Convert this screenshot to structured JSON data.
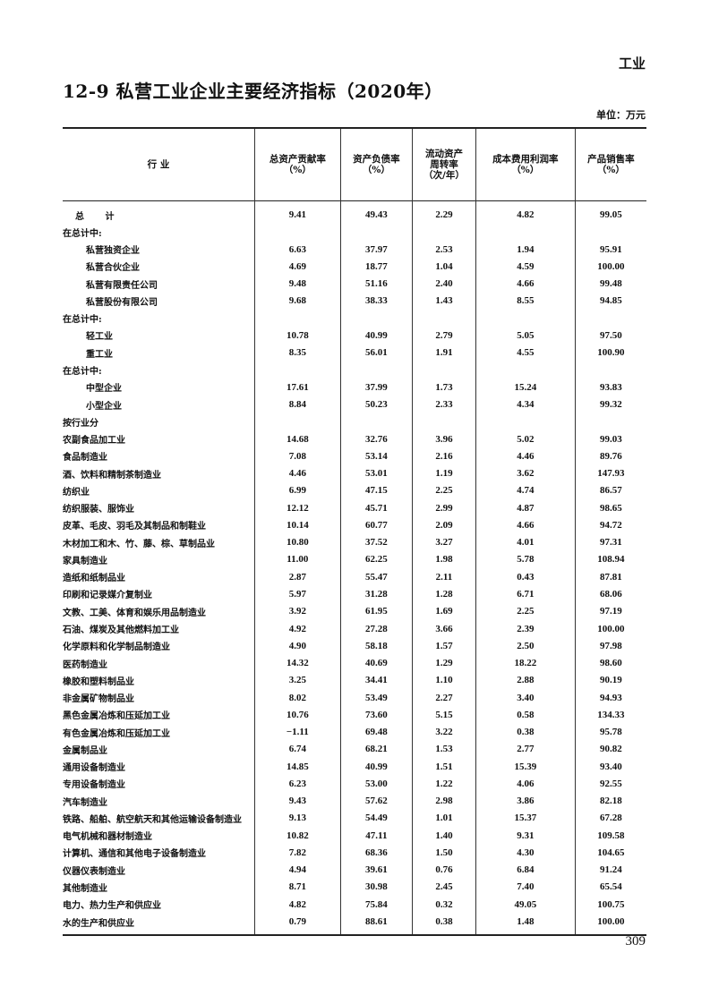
{
  "header": {
    "section": "工业",
    "title": "12-9 私营工业企业主要经济指标（2020年）",
    "unit": "单位：万元"
  },
  "table": {
    "columns": [
      "行 业",
      "总资产贡献率\n（%）",
      "资产负债率\n（%）",
      "流动资产\n周转率\n（次/年）",
      "成本费用利润率\n（%）",
      "产品销售率\n（%）"
    ],
    "rows": [
      {
        "label": "总 计",
        "style": "total",
        "values": [
          "9.41",
          "49.43",
          "2.29",
          "4.82",
          "99.05"
        ]
      },
      {
        "label": "在总计中:",
        "style": "",
        "values": []
      },
      {
        "label": "私营独资企业",
        "style": "ind1",
        "values": [
          "6.63",
          "37.97",
          "2.53",
          "1.94",
          "95.91"
        ]
      },
      {
        "label": "私营合伙企业",
        "style": "ind1",
        "values": [
          "4.69",
          "18.77",
          "1.04",
          "4.59",
          "100.00"
        ]
      },
      {
        "label": "私营有限责任公司",
        "style": "ind1",
        "values": [
          "9.48",
          "51.16",
          "2.40",
          "4.66",
          "99.48"
        ]
      },
      {
        "label": "私营股份有限公司",
        "style": "ind1",
        "values": [
          "9.68",
          "38.33",
          "1.43",
          "8.55",
          "94.85"
        ]
      },
      {
        "label": "在总计中:",
        "style": "",
        "values": []
      },
      {
        "label": "轻工业",
        "style": "ind1",
        "values": [
          "10.78",
          "40.99",
          "2.79",
          "5.05",
          "97.50"
        ]
      },
      {
        "label": "重工业",
        "style": "ind1",
        "values": [
          "8.35",
          "56.01",
          "1.91",
          "4.55",
          "100.90"
        ]
      },
      {
        "label": "在总计中:",
        "style": "",
        "values": []
      },
      {
        "label": "中型企业",
        "style": "ind1",
        "values": [
          "17.61",
          "37.99",
          "1.73",
          "15.24",
          "93.83"
        ]
      },
      {
        "label": "小型企业",
        "style": "ind1",
        "values": [
          "8.84",
          "50.23",
          "2.33",
          "4.34",
          "99.32"
        ]
      },
      {
        "label": "按行业分",
        "style": "",
        "values": []
      },
      {
        "label": "农副食品加工业",
        "style": "",
        "values": [
          "14.68",
          "32.76",
          "3.96",
          "5.02",
          "99.03"
        ]
      },
      {
        "label": "食品制造业",
        "style": "",
        "values": [
          "7.08",
          "53.14",
          "2.16",
          "4.46",
          "89.76"
        ]
      },
      {
        "label": "酒、饮料和精制茶制造业",
        "style": "",
        "values": [
          "4.46",
          "53.01",
          "1.19",
          "3.62",
          "147.93"
        ]
      },
      {
        "label": "纺织业",
        "style": "",
        "values": [
          "6.99",
          "47.15",
          "2.25",
          "4.74",
          "86.57"
        ]
      },
      {
        "label": "纺织服装、服饰业",
        "style": "",
        "values": [
          "12.12",
          "45.71",
          "2.99",
          "4.87",
          "98.65"
        ]
      },
      {
        "label": "皮革、毛皮、羽毛及其制品和制鞋业",
        "style": "",
        "values": [
          "10.14",
          "60.77",
          "2.09",
          "4.66",
          "94.72"
        ]
      },
      {
        "label": "木材加工和木、竹、藤、棕、草制品业",
        "style": "",
        "values": [
          "10.80",
          "37.52",
          "3.27",
          "4.01",
          "97.31"
        ]
      },
      {
        "label": "家具制造业",
        "style": "",
        "values": [
          "11.00",
          "62.25",
          "1.98",
          "5.78",
          "108.94"
        ]
      },
      {
        "label": "造纸和纸制品业",
        "style": "",
        "values": [
          "2.87",
          "55.47",
          "2.11",
          "0.43",
          "87.81"
        ]
      },
      {
        "label": "印刷和记录媒介复制业",
        "style": "",
        "values": [
          "5.97",
          "31.28",
          "1.28",
          "6.71",
          "68.06"
        ]
      },
      {
        "label": "文教、工美、体育和娱乐用品制造业",
        "style": "",
        "values": [
          "3.92",
          "61.95",
          "1.69",
          "2.25",
          "97.19"
        ]
      },
      {
        "label": "石油、煤炭及其他燃料加工业",
        "style": "",
        "values": [
          "4.92",
          "27.28",
          "3.66",
          "2.39",
          "100.00"
        ]
      },
      {
        "label": "化学原料和化学制品制造业",
        "style": "",
        "values": [
          "4.90",
          "58.18",
          "1.57",
          "2.50",
          "97.98"
        ]
      },
      {
        "label": "医药制造业",
        "style": "",
        "values": [
          "14.32",
          "40.69",
          "1.29",
          "18.22",
          "98.60"
        ]
      },
      {
        "label": "橡胶和塑料制品业",
        "style": "",
        "values": [
          "3.25",
          "34.41",
          "1.10",
          "2.88",
          "90.19"
        ]
      },
      {
        "label": "非金属矿物制品业",
        "style": "",
        "values": [
          "8.02",
          "53.49",
          "2.27",
          "3.40",
          "94.93"
        ]
      },
      {
        "label": "黑色金属冶炼和压延加工业",
        "style": "",
        "values": [
          "10.76",
          "73.60",
          "5.15",
          "0.58",
          "134.33"
        ]
      },
      {
        "label": "有色金属冶炼和压延加工业",
        "style": "",
        "values": [
          "−1.11",
          "69.48",
          "3.22",
          "0.38",
          "95.78"
        ]
      },
      {
        "label": "金属制品业",
        "style": "",
        "values": [
          "6.74",
          "68.21",
          "1.53",
          "2.77",
          "90.82"
        ]
      },
      {
        "label": "通用设备制造业",
        "style": "",
        "values": [
          "14.85",
          "40.99",
          "1.51",
          "15.39",
          "93.40"
        ]
      },
      {
        "label": "专用设备制造业",
        "style": "",
        "values": [
          "6.23",
          "53.00",
          "1.22",
          "4.06",
          "92.55"
        ]
      },
      {
        "label": "汽车制造业",
        "style": "",
        "values": [
          "9.43",
          "57.62",
          "2.98",
          "3.86",
          "82.18"
        ]
      },
      {
        "label": "铁路、船舶、航空航天和其他运输设备制造业",
        "style": "",
        "values": [
          "9.13",
          "54.49",
          "1.01",
          "15.37",
          "67.28"
        ]
      },
      {
        "label": "电气机械和器材制造业",
        "style": "",
        "values": [
          "10.82",
          "47.11",
          "1.40",
          "9.31",
          "109.58"
        ]
      },
      {
        "label": "计算机、通信和其他电子设备制造业",
        "style": "",
        "values": [
          "7.82",
          "68.36",
          "1.50",
          "4.30",
          "104.65"
        ]
      },
      {
        "label": "仪器仪表制造业",
        "style": "",
        "values": [
          "4.94",
          "39.61",
          "0.76",
          "6.84",
          "91.24"
        ]
      },
      {
        "label": "其他制造业",
        "style": "",
        "values": [
          "8.71",
          "30.98",
          "2.45",
          "7.40",
          "65.54"
        ]
      },
      {
        "label": "电力、热力生产和供应业",
        "style": "",
        "values": [
          "4.82",
          "75.84",
          "0.32",
          "49.05",
          "100.75"
        ]
      },
      {
        "label": "水的生产和供应业",
        "style": "",
        "values": [
          "0.79",
          "88.61",
          "0.38",
          "1.48",
          "100.00"
        ]
      }
    ]
  },
  "footer": {
    "page_number": "309"
  }
}
